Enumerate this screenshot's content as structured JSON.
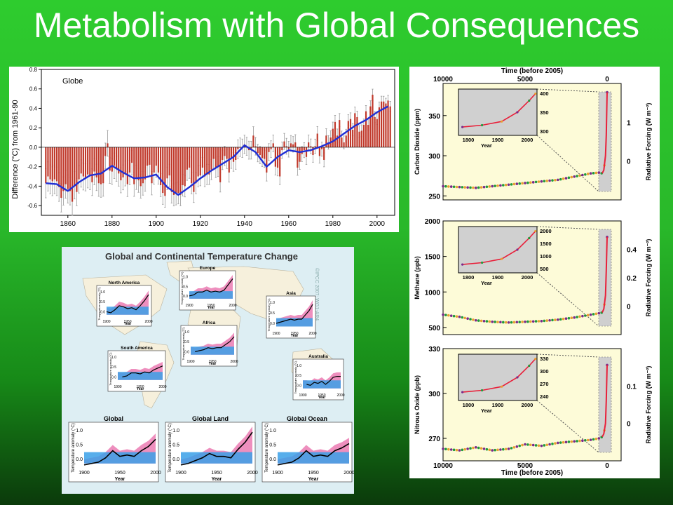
{
  "slide": {
    "title": "Metabolism with Global Consequences"
  },
  "colors": {
    "bar": "#c0392b",
    "smooth": "#1f2fd6",
    "errorbar": "#9a9a9a",
    "obs": "#000000",
    "model_natural": "#3aa0e8",
    "model_all": "#e86aa8",
    "ice_core_1": "#7a2a8a",
    "ice_core_2": "#1f9a3a",
    "ice_core_3": "#e8a030",
    "modern": "#e8203a",
    "chart_bg": "#fdfbd8",
    "inset_bg": "#d0d0d0"
  },
  "chart_data": [
    {
      "type": "bar",
      "panel_label": "Globe",
      "ylabel": "Difference (°C) from 1961-90",
      "xlim": [
        1848,
        2008
      ],
      "ylim": [
        -0.7,
        0.8
      ],
      "xticks": [
        1860,
        1880,
        1900,
        1920,
        1940,
        1960,
        1980,
        2000
      ],
      "yticks": [
        -0.6,
        -0.4,
        -0.2,
        0.0,
        0.2,
        0.4,
        0.6,
        0.8
      ],
      "x": [
        1850,
        1851,
        1852,
        1853,
        1854,
        1855,
        1856,
        1857,
        1858,
        1859,
        1860,
        1861,
        1862,
        1863,
        1864,
        1865,
        1866,
        1867,
        1868,
        1869,
        1870,
        1871,
        1872,
        1873,
        1874,
        1875,
        1876,
        1877,
        1878,
        1879,
        1880,
        1881,
        1882,
        1883,
        1884,
        1885,
        1886,
        1887,
        1888,
        1889,
        1890,
        1891,
        1892,
        1893,
        1894,
        1895,
        1896,
        1897,
        1898,
        1899,
        1900,
        1901,
        1902,
        1903,
        1904,
        1905,
        1906,
        1907,
        1908,
        1909,
        1910,
        1911,
        1912,
        1913,
        1914,
        1915,
        1916,
        1917,
        1918,
        1919,
        1920,
        1921,
        1922,
        1923,
        1924,
        1925,
        1926,
        1927,
        1928,
        1929,
        1930,
        1931,
        1932,
        1933,
        1934,
        1935,
        1936,
        1937,
        1938,
        1939,
        1940,
        1941,
        1942,
        1943,
        1944,
        1945,
        1946,
        1947,
        1948,
        1949,
        1950,
        1951,
        1952,
        1953,
        1954,
        1955,
        1956,
        1957,
        1958,
        1959,
        1960,
        1961,
        1962,
        1963,
        1964,
        1965,
        1966,
        1967,
        1968,
        1969,
        1970,
        1971,
        1972,
        1973,
        1974,
        1975,
        1976,
        1977,
        1978,
        1979,
        1980,
        1981,
        1982,
        1983,
        1984,
        1985,
        1986,
        1987,
        1988,
        1989,
        1990,
        1991,
        1992,
        1993,
        1994,
        1995,
        1996,
        1997,
        1998,
        1999,
        2000,
        2001,
        2002,
        2003,
        2004,
        2005,
        2006
      ],
      "values": [
        -0.37,
        -0.3,
        -0.33,
        -0.35,
        -0.33,
        -0.35,
        -0.41,
        -0.52,
        -0.45,
        -0.38,
        -0.43,
        -0.45,
        -0.56,
        -0.39,
        -0.46,
        -0.33,
        -0.27,
        -0.3,
        -0.31,
        -0.28,
        -0.3,
        -0.36,
        -0.25,
        -0.31,
        -0.37,
        -0.38,
        -0.37,
        -0.09,
        0.04,
        -0.24,
        -0.25,
        -0.19,
        -0.22,
        -0.27,
        -0.34,
        -0.31,
        -0.27,
        -0.38,
        -0.26,
        -0.16,
        -0.38,
        -0.31,
        -0.34,
        -0.4,
        -0.37,
        -0.33,
        -0.19,
        -0.18,
        -0.37,
        -0.26,
        -0.19,
        -0.26,
        -0.39,
        -0.47,
        -0.5,
        -0.32,
        -0.29,
        -0.46,
        -0.49,
        -0.48,
        -0.47,
        -0.49,
        -0.39,
        -0.4,
        -0.23,
        -0.21,
        -0.37,
        -0.46,
        -0.37,
        -0.3,
        -0.29,
        -0.21,
        -0.3,
        -0.28,
        -0.28,
        -0.23,
        -0.12,
        -0.21,
        -0.2,
        -0.36,
        -0.13,
        -0.09,
        -0.12,
        -0.26,
        -0.12,
        -0.15,
        -0.13,
        -0.02,
        0.0,
        -0.01,
        0.03,
        0.01,
        -0.03,
        -0.03,
        0.12,
        0.01,
        -0.06,
        -0.08,
        -0.11,
        -0.12,
        -0.26,
        -0.05,
        -0.02,
        0.04,
        -0.2,
        -0.21,
        -0.3,
        -0.03,
        0.06,
        0.01,
        -0.02,
        0.04,
        0.03,
        0.05,
        -0.21,
        -0.15,
        -0.07,
        -0.03,
        -0.1,
        0.05,
        0.01,
        -0.08,
        0.01,
        0.14,
        -0.09,
        -0.02,
        -0.13,
        0.12,
        0.05,
        0.1,
        0.19,
        0.26,
        0.12,
        0.28,
        0.1,
        0.05,
        0.12,
        0.27,
        0.29,
        0.18,
        0.35,
        0.31,
        0.16,
        0.17,
        0.23,
        0.37,
        0.23,
        0.42,
        0.54,
        0.31,
        0.29,
        0.41,
        0.47,
        0.47,
        0.45,
        0.48,
        0.42
      ],
      "series": [
        {
          "name": "smoothed",
          "x": [
            1850,
            1855,
            1860,
            1865,
            1870,
            1875,
            1880,
            1885,
            1890,
            1895,
            1900,
            1905,
            1910,
            1915,
            1920,
            1925,
            1930,
            1935,
            1940,
            1945,
            1950,
            1955,
            1960,
            1965,
            1970,
            1975,
            1980,
            1985,
            1990,
            1995,
            2000,
            2005
          ],
          "values": [
            -0.37,
            -0.38,
            -0.45,
            -0.36,
            -0.29,
            -0.27,
            -0.19,
            -0.26,
            -0.32,
            -0.31,
            -0.28,
            -0.41,
            -0.49,
            -0.41,
            -0.32,
            -0.24,
            -0.17,
            -0.1,
            0.02,
            -0.05,
            -0.2,
            -0.1,
            -0.03,
            -0.05,
            -0.03,
            0.01,
            0.06,
            0.14,
            0.22,
            0.28,
            0.36,
            0.42
          ]
        }
      ]
    },
    {
      "type": "line",
      "title": "Global and Continental Temperature Change",
      "watermark": "©IPCC 2007: WG1-AR4",
      "ylabel": "Temperature anomaly (°C)",
      "xlabel": "Year",
      "x": [
        1900,
        1910,
        1920,
        1930,
        1940,
        1950,
        1960,
        1970,
        1980,
        1990,
        2000
      ],
      "panels": [
        {
          "name": "North America",
          "yticks": [
            "0.0",
            "0.5",
            "1.0"
          ],
          "xticks": [
            "1900",
            "1950",
            "2000"
          ],
          "observed": [
            0.0,
            -0.05,
            0.1,
            0.3,
            0.25,
            0.15,
            0.2,
            0.1,
            0.3,
            0.55,
            0.85
          ]
        },
        {
          "name": "Europe",
          "yticks": [
            "0.0",
            "0.5",
            "1.0"
          ],
          "xticks": [
            "1900",
            "1950",
            "2000"
          ],
          "observed": [
            0.0,
            0.05,
            0.2,
            0.2,
            0.3,
            0.2,
            0.25,
            0.2,
            0.3,
            0.6,
            0.9
          ]
        },
        {
          "name": "Asia",
          "yticks": [
            "0.0",
            "0.5",
            "1.0"
          ],
          "xticks": [
            "1900",
            "1950",
            "2000"
          ],
          "observed": [
            0.0,
            0.05,
            0.1,
            0.15,
            0.2,
            0.15,
            0.2,
            0.2,
            0.4,
            0.6,
            0.9
          ]
        },
        {
          "name": "Africa",
          "yticks": [
            "0.0",
            "0.5",
            "1.0"
          ],
          "xticks": [
            "1900",
            "1950",
            "2000"
          ],
          "observed": [
            null,
            0.0,
            0.05,
            0.1,
            0.2,
            0.15,
            0.2,
            0.2,
            0.35,
            0.5,
            0.75
          ]
        },
        {
          "name": "South America",
          "yticks": [
            "0.0",
            "0.5",
            "1.0"
          ],
          "xticks": [
            "1900",
            "1950",
            "2000"
          ],
          "observed": [
            null,
            0.0,
            0.05,
            0.2,
            0.2,
            0.15,
            0.25,
            0.2,
            0.35,
            0.45,
            0.55
          ]
        },
        {
          "name": "Australia",
          "yticks": [
            "0.0",
            "0.5",
            "1.0"
          ],
          "xticks": [
            "1900",
            "1950",
            "2000"
          ],
          "observed": [
            null,
            0.05,
            0.0,
            0.15,
            0.1,
            0.2,
            0.05,
            0.2,
            0.4,
            0.45,
            0.45
          ]
        },
        {
          "name": "Global",
          "yticks": [
            "0.0",
            "0.5",
            "1.0"
          ],
          "xticks": [
            "1900",
            "1950",
            "2000"
          ],
          "observed": [
            -0.2,
            -0.15,
            -0.1,
            0.05,
            0.3,
            0.1,
            0.15,
            0.1,
            0.3,
            0.45,
            0.7
          ]
        },
        {
          "name": "Global Land",
          "yticks": [
            "0.0",
            "0.5",
            "1.0"
          ],
          "xticks": [
            "1900",
            "1950",
            "2000"
          ],
          "observed": [
            -0.2,
            -0.15,
            -0.05,
            0.05,
            0.2,
            0.1,
            0.1,
            0.05,
            0.35,
            0.6,
            0.95
          ]
        },
        {
          "name": "Global Ocean",
          "yticks": [
            "0.0",
            "0.5",
            "1.0"
          ],
          "xticks": [
            "1900",
            "1950",
            "2000"
          ],
          "observed": [
            -0.2,
            -0.15,
            -0.1,
            0.05,
            0.3,
            0.1,
            0.15,
            0.1,
            0.3,
            0.4,
            0.55
          ]
        }
      ]
    },
    {
      "type": "scatter",
      "top_xlabel": "Time (before 2005)",
      "bottom_xlabel": "Time (before 2005)",
      "xlim": [
        10000,
        0
      ],
      "xticks": [
        10000,
        5000,
        0
      ],
      "inset_xlabel": "Year",
      "inset_xticks": [
        "1800",
        "1900",
        "2000"
      ],
      "panels": [
        {
          "name": "Carbon Dioxide",
          "ylabel": "Carbon Dioxide (ppm)",
          "ylim": [
            245,
            390
          ],
          "yticks": [
            250,
            300,
            350
          ],
          "right_label": "Radiative Forcing (W m⁻²)",
          "right_ticks": [
            "1",
            "0"
          ],
          "inset_yticks": [
            "400",
            "350",
            "300"
          ],
          "x": [
            10000,
            9000,
            8000,
            7000,
            6000,
            5000,
            4000,
            3000,
            2000,
            1000,
            500,
            300,
            200,
            100,
            50,
            0
          ],
          "values": [
            262,
            261,
            260,
            262,
            264,
            266,
            268,
            270,
            274,
            278,
            279,
            278,
            282,
            300,
            325,
            379
          ]
        },
        {
          "name": "Methane",
          "ylabel": "Methane (ppb)",
          "ylim": [
            400,
            2000
          ],
          "yticks": [
            500,
            1000,
            1500,
            2000
          ],
          "right_label": "Radiative Forcing (W m⁻²)",
          "right_ticks": [
            "0.4",
            "0.2",
            "0"
          ],
          "inset_yticks": [
            "2000",
            "1500",
            "1000",
            "500"
          ],
          "x": [
            10000,
            9000,
            8000,
            7000,
            6000,
            5000,
            4000,
            3000,
            2000,
            1000,
            500,
            300,
            200,
            100,
            50,
            0
          ],
          "values": [
            680,
            650,
            600,
            580,
            570,
            580,
            590,
            610,
            640,
            680,
            700,
            710,
            760,
            950,
            1300,
            1774
          ]
        },
        {
          "name": "Nitrous Oxide",
          "ylabel": "Nitrous Oxide (ppb)",
          "ylim": [
            255,
            330
          ],
          "yticks": [
            270,
            300,
            330
          ],
          "right_label": "Radiative Forcing (W m⁻²)",
          "right_ticks": [
            "0.1",
            "0"
          ],
          "inset_yticks": [
            "330",
            "300",
            "270",
            "240"
          ],
          "x": [
            10000,
            9000,
            8000,
            7000,
            6000,
            5000,
            4000,
            3000,
            2000,
            1000,
            500,
            300,
            200,
            100,
            50,
            0
          ],
          "values": [
            263,
            262,
            264,
            262,
            263,
            266,
            265,
            267,
            268,
            269,
            270,
            271,
            273,
            280,
            295,
            319
          ]
        }
      ]
    }
  ]
}
